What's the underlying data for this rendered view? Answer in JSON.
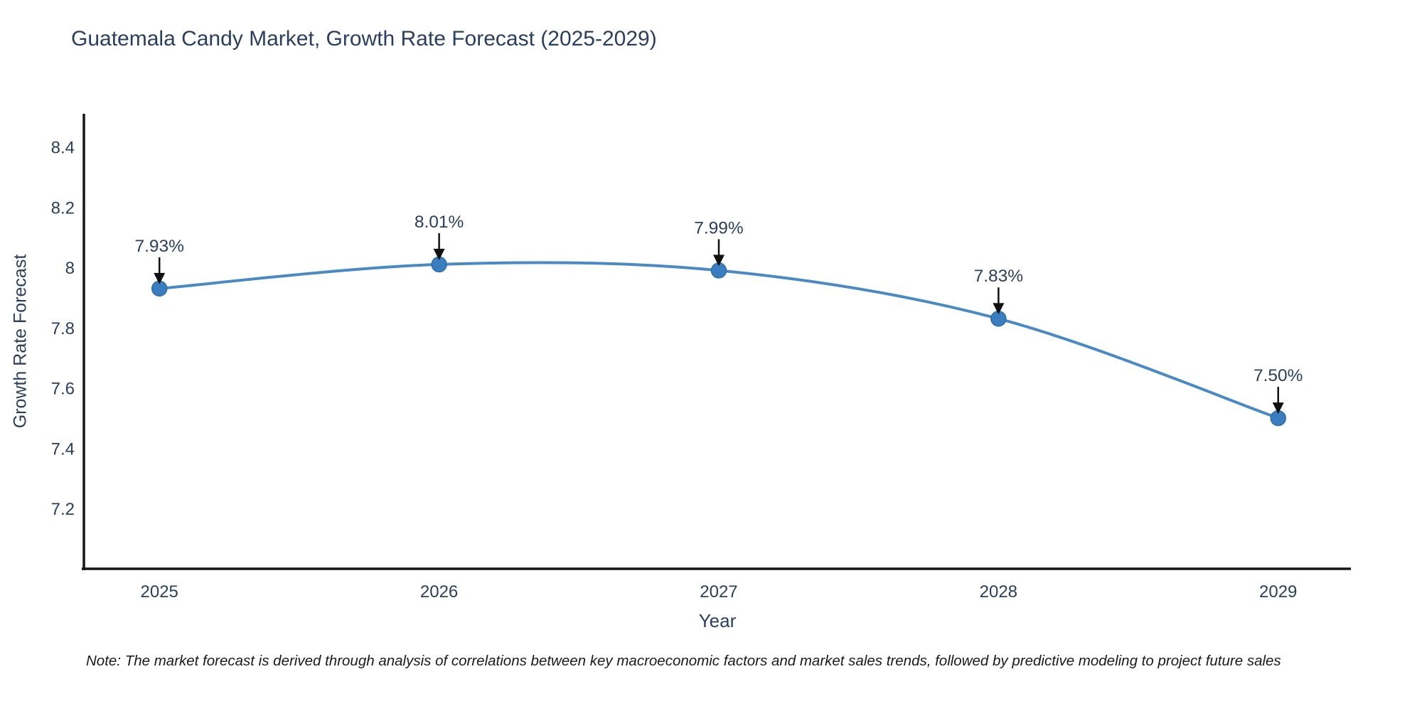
{
  "title": "Guatemala Candy Market, Growth Rate Forecast (2025-2029)",
  "note": "Note: The market forecast is derived through analysis of correlations between key macroeconomic factors and market sales trends, followed by predictive modeling to project future sales",
  "chart_data": {
    "type": "line",
    "title": "Guatemala Candy Market, Growth Rate Forecast (2025-2029)",
    "xlabel": "Year",
    "ylabel": "Growth Rate Forecast",
    "x": [
      2025,
      2026,
      2027,
      2028,
      2029
    ],
    "values": [
      7.93,
      8.01,
      7.99,
      7.83,
      7.5
    ],
    "series": [
      {
        "name": "Growth Rate Forecast",
        "values": [
          7.93,
          8.01,
          7.99,
          7.83,
          7.5
        ]
      }
    ],
    "point_labels": [
      "7.93%",
      "8.01%",
      "7.99%",
      "7.83%",
      "7.50%"
    ],
    "x_tick_labels": [
      "2025",
      "2026",
      "2027",
      "2028",
      "2029"
    ],
    "y_ticks": [
      7.2,
      7.4,
      7.6,
      7.8,
      8,
      8.2,
      8.4
    ],
    "y_tick_labels": [
      "7.2",
      "7.4",
      "7.6",
      "7.8",
      "8",
      "8.2",
      "8.4"
    ],
    "xlim": [
      2024.73,
      2029.26
    ],
    "ylim": [
      7.0,
      8.51
    ],
    "line_shape": "spline",
    "grid": false,
    "legend": false,
    "annotations": "black arrows pointing down from each percentage label to its marker",
    "colors": {
      "line": "#4a8ac4",
      "marker": "#3a7ebf",
      "marker_edge": "#2f6da8",
      "axis": "#161616",
      "text": "#2a3f5f",
      "annotation_arrow": "#111111",
      "note_text": "#1a1a1a",
      "background": "#ffffff"
    }
  }
}
